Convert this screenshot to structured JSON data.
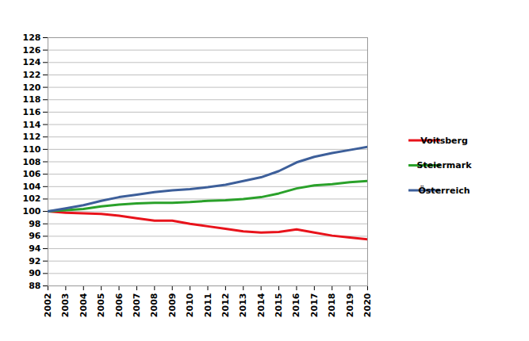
{
  "chart_data": {
    "type": "line",
    "x": [
      2002,
      2003,
      2004,
      2005,
      2006,
      2007,
      2008,
      2009,
      2010,
      2011,
      2012,
      2013,
      2014,
      2015,
      2016,
      2017,
      2018,
      2019,
      2020
    ],
    "series": [
      {
        "name": "Voitsberg",
        "color": "#e8131b",
        "values": [
          100,
          99.8,
          99.7,
          99.6,
          99.3,
          98.9,
          98.5,
          98.5,
          98.0,
          97.6,
          97.2,
          96.8,
          96.6,
          96.7,
          97.1,
          96.6,
          96.1,
          95.8,
          95.5
        ]
      },
      {
        "name": "Steiermark",
        "color": "#2aa12a",
        "values": [
          100,
          100.2,
          100.4,
          100.8,
          101.1,
          101.3,
          101.4,
          101.4,
          101.5,
          101.7,
          101.8,
          102.0,
          102.3,
          102.9,
          103.7,
          104.2,
          104.4,
          104.7,
          104.9
        ]
      },
      {
        "name": "Österreich",
        "color": "#3d5f9a",
        "values": [
          100,
          100.5,
          101.0,
          101.7,
          102.3,
          102.7,
          103.1,
          103.4,
          103.6,
          103.9,
          104.3,
          104.9,
          105.5,
          106.5,
          107.9,
          108.8,
          109.4,
          109.9,
          110.4
        ]
      }
    ],
    "xlim": [
      2002,
      2020
    ],
    "xticks": [
      2002,
      2003,
      2004,
      2005,
      2006,
      2007,
      2008,
      2009,
      2010,
      2011,
      2012,
      2013,
      2014,
      2015,
      2016,
      2017,
      2018,
      2019,
      2020
    ],
    "ylim": [
      88,
      128
    ],
    "yticks": [
      88,
      90,
      92,
      94,
      96,
      98,
      100,
      102,
      104,
      106,
      108,
      110,
      112,
      114,
      116,
      118,
      120,
      122,
      124,
      126,
      128
    ],
    "grid": true,
    "legend": "right"
  }
}
